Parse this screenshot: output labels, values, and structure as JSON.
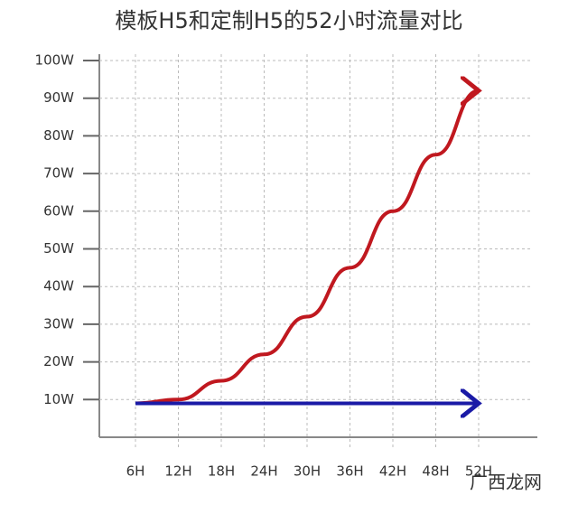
{
  "chart_data": {
    "type": "line",
    "title": "模板H5和定制H5的52小时流量对比",
    "categories": [
      "6H",
      "12H",
      "18H",
      "24H",
      "30H",
      "36H",
      "42H",
      "48H",
      "52H"
    ],
    "series": [
      {
        "color": "#c0181f",
        "values": [
          9,
          10,
          15,
          22,
          32,
          45,
          60,
          75,
          92
        ]
      },
      {
        "color": "#1a1aa6",
        "values": [
          9,
          9,
          9,
          9,
          9,
          9,
          9,
          9,
          9
        ]
      }
    ],
    "ylim": [
      0,
      100
    ],
    "yticks": [
      {
        "value": 10,
        "label": "10W"
      },
      {
        "value": 20,
        "label": "20W"
      },
      {
        "value": 30,
        "label": "30W"
      },
      {
        "value": 40,
        "label": "40W"
      },
      {
        "value": 50,
        "label": "50W"
      },
      {
        "value": 60,
        "label": "60W"
      },
      {
        "value": 70,
        "label": "70W"
      },
      {
        "value": 80,
        "label": "80W"
      },
      {
        "value": 90,
        "label": "90W"
      },
      {
        "value": 100,
        "label": "100W"
      }
    ],
    "grid": true,
    "watermark": "广西龙网"
  }
}
